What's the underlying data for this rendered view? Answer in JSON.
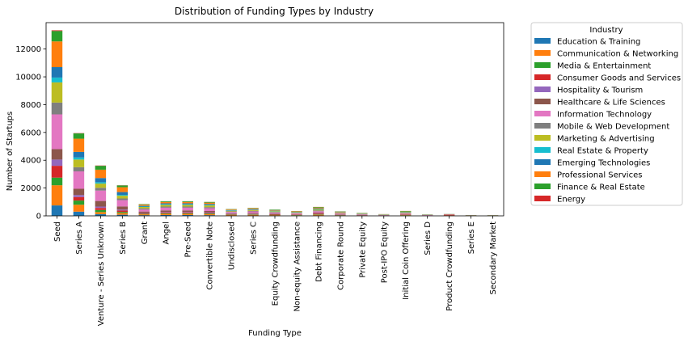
{
  "chart_data": {
    "type": "bar",
    "stacked": true,
    "title": "Distribution of Funding Types by Industry",
    "xlabel": "Funding Type",
    "ylabel": "Number of Startups",
    "ylim": [
      0,
      13900
    ],
    "yticks": [
      0,
      2000,
      4000,
      6000,
      8000,
      10000,
      12000
    ],
    "grid": false,
    "legend": {
      "title": "Industry",
      "placement": "outside-right"
    },
    "categories": [
      "Seed",
      "Series A",
      "Venture - Series Unknown",
      "Series B",
      "Grant",
      "Angel",
      "Pre-Seed",
      "Convertible Note",
      "Undisclosed",
      "Series C",
      "Equity Crowdfunding",
      "Non-equity Assistance",
      "Debt Financing",
      "Corporate Round",
      "Private Equity",
      "Post-IPO Equity",
      "Initial Coin Offering",
      "Series D",
      "Product Crowdfunding",
      "Series E",
      "Secondary Market"
    ],
    "series": [
      {
        "name": "Education & Training",
        "color": "#1f77b4",
        "values": [
          750,
          300,
          120,
          80,
          50,
          60,
          60,
          50,
          30,
          30,
          25,
          20,
          30,
          15,
          10,
          5,
          20,
          5,
          10,
          2,
          2
        ]
      },
      {
        "name": "Communication & Networking",
        "color": "#ff7f0e",
        "values": [
          1450,
          500,
          150,
          120,
          60,
          80,
          80,
          70,
          40,
          40,
          30,
          25,
          50,
          20,
          15,
          10,
          30,
          10,
          15,
          5,
          5
        ]
      },
      {
        "name": "Media & Entertainment",
        "color": "#2ca02c",
        "values": [
          550,
          300,
          150,
          80,
          40,
          50,
          50,
          50,
          25,
          30,
          25,
          20,
          30,
          15,
          10,
          5,
          15,
          5,
          10,
          3,
          3
        ]
      },
      {
        "name": "Consumer Goods and Services",
        "color": "#d62728",
        "values": [
          850,
          250,
          150,
          100,
          50,
          60,
          60,
          50,
          30,
          30,
          40,
          20,
          40,
          20,
          15,
          5,
          20,
          5,
          50,
          3,
          3
        ]
      },
      {
        "name": "Hospitality & Tourism",
        "color": "#9467bd",
        "values": [
          450,
          150,
          100,
          70,
          30,
          40,
          40,
          40,
          20,
          20,
          20,
          15,
          20,
          10,
          10,
          5,
          10,
          5,
          5,
          2,
          2
        ]
      },
      {
        "name": "Healthcare & Life Sciences",
        "color": "#8c564b",
        "values": [
          750,
          450,
          400,
          230,
          80,
          100,
          100,
          90,
          40,
          60,
          30,
          30,
          60,
          30,
          20,
          15,
          30,
          10,
          5,
          5,
          5
        ]
      },
      {
        "name": "Information Technology",
        "color": "#e377c2",
        "values": [
          2500,
          1250,
          750,
          450,
          150,
          200,
          200,
          200,
          90,
          110,
          70,
          60,
          100,
          60,
          30,
          20,
          50,
          20,
          10,
          10,
          5
        ]
      },
      {
        "name": "Mobile & Web Development",
        "color": "#7f7f7f",
        "values": [
          850,
          300,
          200,
          120,
          80,
          80,
          80,
          80,
          40,
          40,
          40,
          30,
          60,
          30,
          20,
          10,
          30,
          10,
          5,
          5,
          5
        ]
      },
      {
        "name": "Marketing & Advertising",
        "color": "#bcbd22",
        "values": [
          1450,
          550,
          300,
          200,
          100,
          120,
          120,
          120,
          50,
          60,
          50,
          40,
          70,
          40,
          20,
          10,
          40,
          10,
          5,
          5,
          5
        ]
      },
      {
        "name": "Real Estate & Property",
        "color": "#17becf",
        "values": [
          350,
          150,
          100,
          60,
          30,
          40,
          40,
          40,
          20,
          20,
          20,
          15,
          30,
          10,
          10,
          5,
          15,
          5,
          5,
          2,
          2
        ]
      },
      {
        "name": "Emerging Technologies",
        "color": "#1f77b4",
        "values": [
          750,
          400,
          300,
          200,
          50,
          70,
          70,
          60,
          30,
          40,
          20,
          20,
          40,
          20,
          10,
          10,
          20,
          10,
          5,
          3,
          3
        ]
      },
      {
        "name": "Professional Services",
        "color": "#ff7f0e",
        "values": [
          1850,
          950,
          600,
          350,
          80,
          100,
          100,
          100,
          40,
          60,
          30,
          30,
          70,
          30,
          15,
          10,
          30,
          10,
          5,
          5,
          5
        ]
      },
      {
        "name": "Finance & Real Estate",
        "color": "#2ca02c",
        "values": [
          750,
          380,
          280,
          130,
          40,
          50,
          50,
          50,
          30,
          30,
          40,
          20,
          40,
          20,
          20,
          10,
          40,
          5,
          5,
          5,
          5
        ]
      },
      {
        "name": "Energy",
        "color": "#d62728",
        "values": [
          50,
          20,
          20,
          10,
          5,
          5,
          5,
          5,
          5,
          5,
          5,
          5,
          5,
          5,
          5,
          5,
          5,
          2,
          2,
          2,
          2
        ]
      }
    ]
  }
}
